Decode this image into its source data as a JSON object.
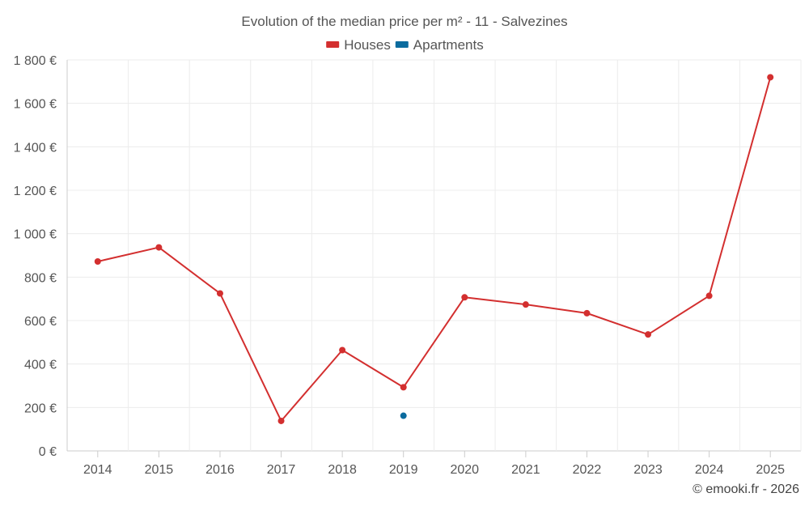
{
  "chart_data": {
    "type": "line",
    "title": "Evolution of the median price per m² - 11 - Salvezines",
    "categories": [
      "2014",
      "2015",
      "2016",
      "2017",
      "2018",
      "2019",
      "2020",
      "2021",
      "2022",
      "2023",
      "2024",
      "2025"
    ],
    "series": [
      {
        "name": "Houses",
        "color": "#d32f2f",
        "values": [
          872,
          937,
          725,
          138,
          464,
          293,
          707,
          674,
          634,
          536,
          714,
          1720
        ]
      },
      {
        "name": "Apartments",
        "color": "#0b6b9e",
        "values": [
          null,
          null,
          null,
          null,
          null,
          162,
          null,
          null,
          null,
          null,
          null,
          null
        ]
      }
    ],
    "ylim": [
      0,
      1800
    ],
    "yticks": [
      0,
      200,
      400,
      600,
      800,
      1000,
      1200,
      1400,
      1600,
      1800
    ],
    "ytick_labels": [
      "0 €",
      "200 €",
      "400 €",
      "600 €",
      "800 €",
      "1 000 €",
      "1 200 €",
      "1 400 €",
      "1 600 €",
      "1 800 €"
    ],
    "grid": true,
    "legend_position": "top-center",
    "credit": "© emooki.fr - 2026"
  }
}
